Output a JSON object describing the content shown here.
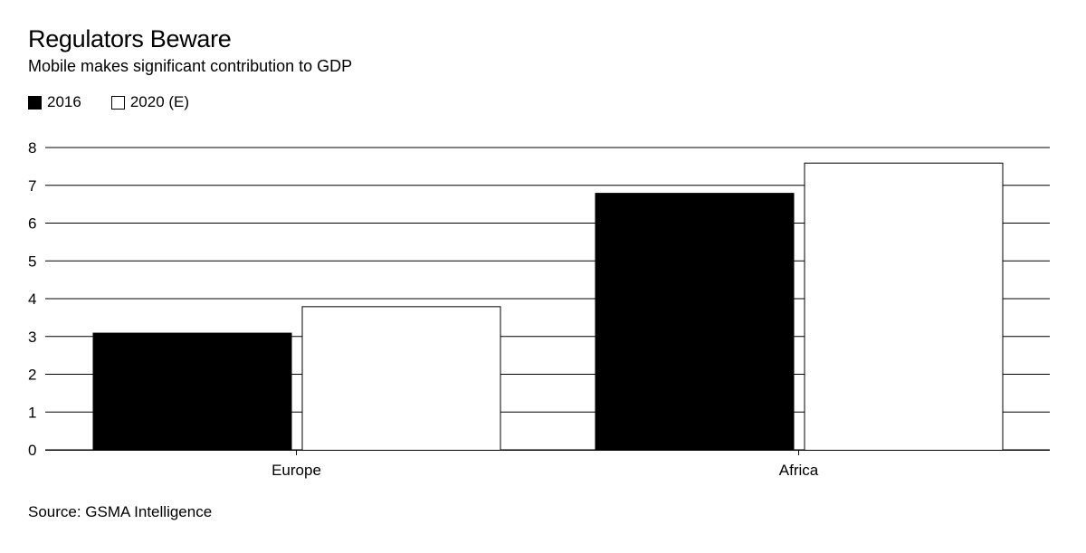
{
  "chart_data": {
    "type": "bar",
    "title": "Regulators Beware",
    "subtitle": "Mobile makes significant contribution to GDP",
    "categories": [
      "Europe",
      "Africa"
    ],
    "series": [
      {
        "name": "2016",
        "values": [
          3.1,
          6.8
        ]
      },
      {
        "name": "2020 (E)",
        "values": [
          3.8,
          7.6
        ]
      }
    ],
    "ylim": [
      0,
      8
    ],
    "yticks": [
      "0",
      "1",
      "2",
      "3",
      "4",
      "5",
      "6",
      "7",
      "8"
    ],
    "grid": true,
    "legend_position": "top-left",
    "source": "Source: GSMA Intelligence"
  },
  "colors": {
    "series": [
      "#000000",
      "#ffffff"
    ],
    "outline": "#000000",
    "grid": "#000000",
    "text": "#000000"
  }
}
